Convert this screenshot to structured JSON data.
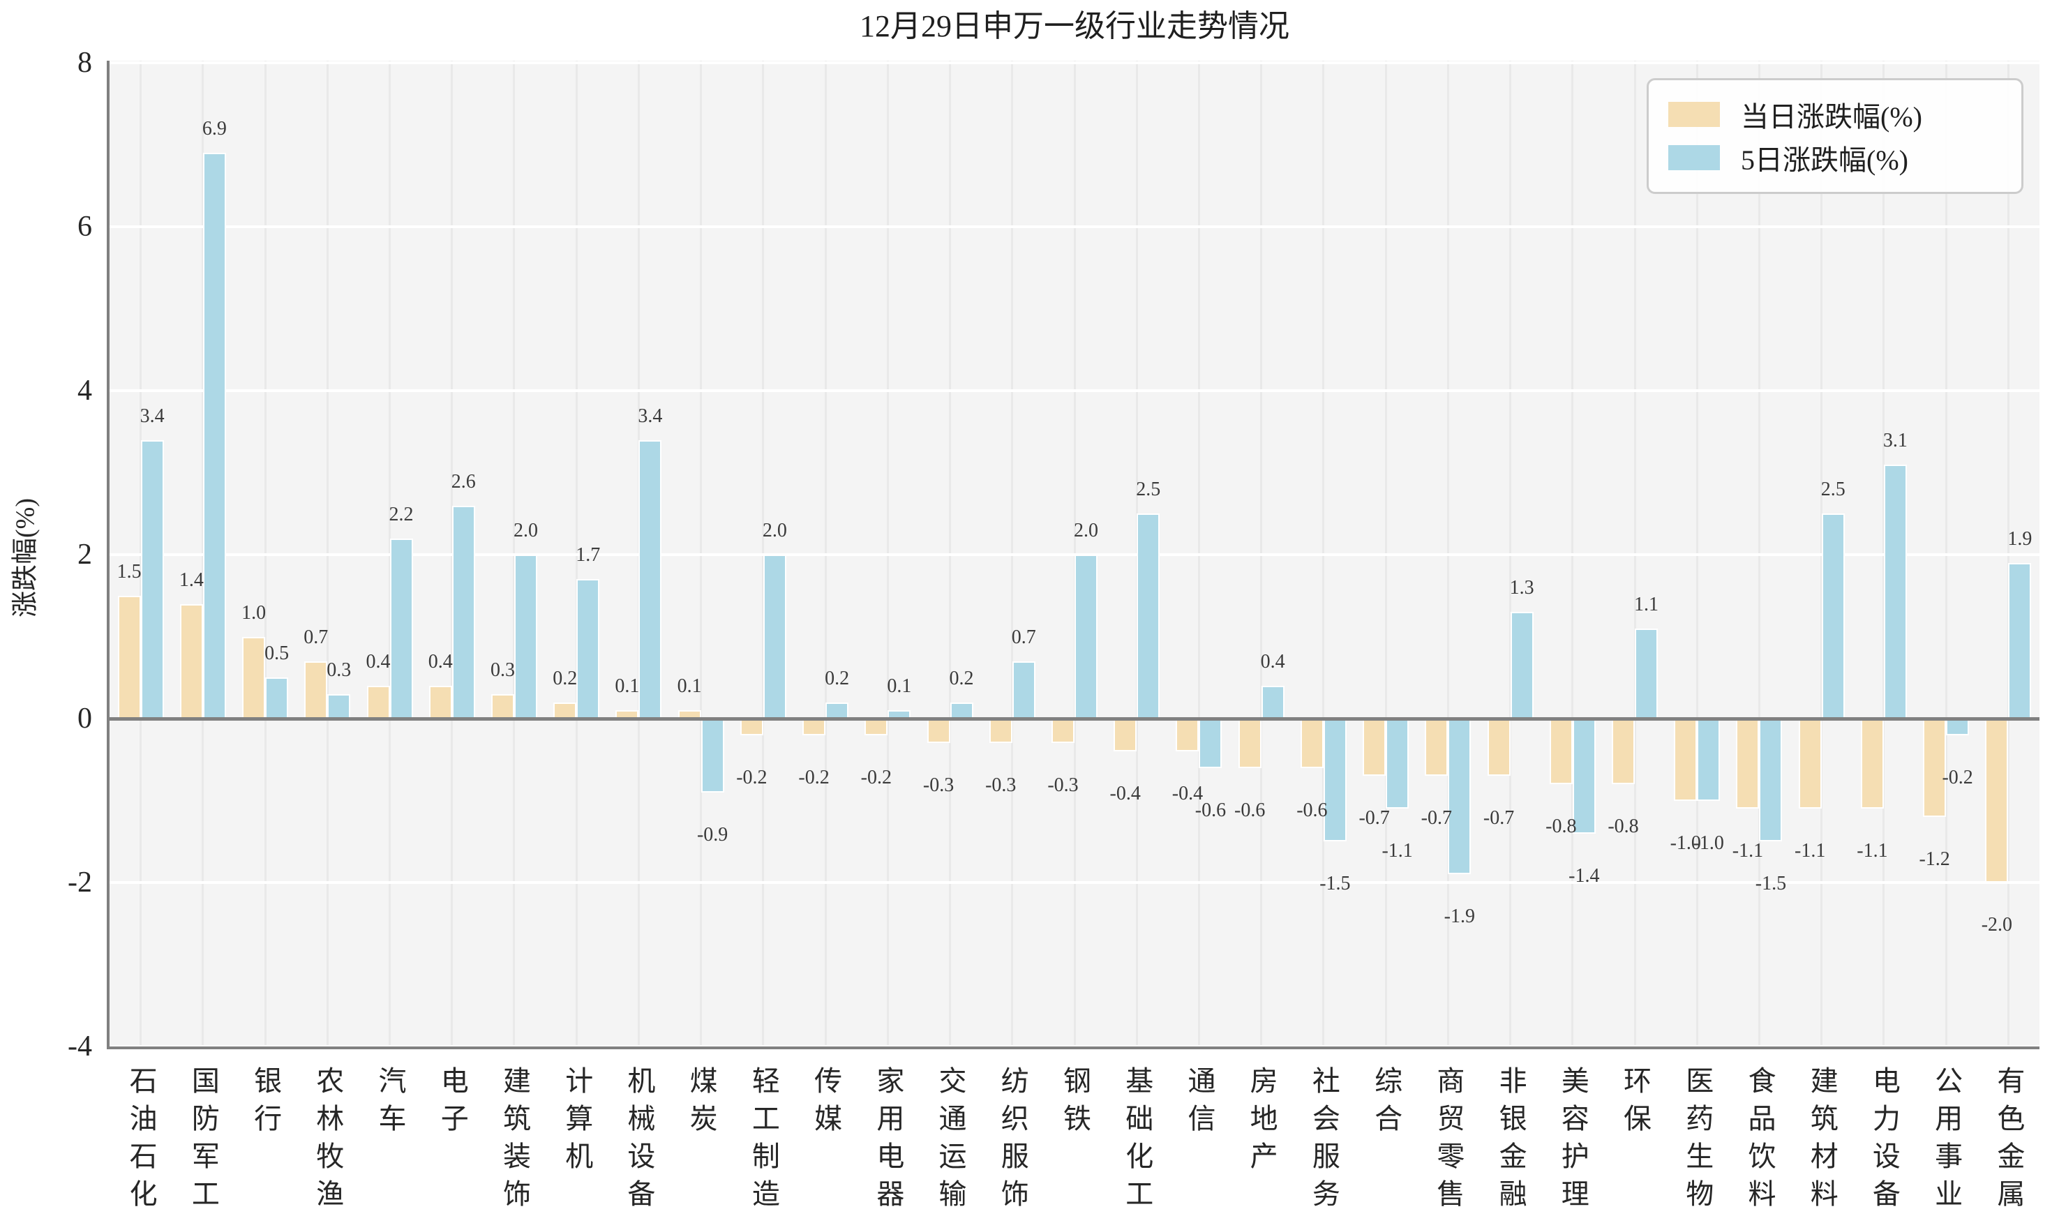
{
  "chart_data": {
    "type": "bar",
    "title": "12月29日申万一级行业走势情况",
    "ylabel": "涨跌幅(%)",
    "xlabel": "",
    "ylim": [
      -4,
      8
    ],
    "yticks": [
      8,
      6,
      4,
      2,
      0,
      -2,
      -4
    ],
    "grid": true,
    "legend_position": "upper right",
    "value_labels": true,
    "categories": [
      "石油石化",
      "国防军工",
      "银行",
      "农林牧渔",
      "汽车",
      "电子",
      "建筑装饰",
      "计算机",
      "机械设备",
      "煤炭",
      "轻工制造",
      "传媒",
      "家用电器",
      "交通运输",
      "纺织服饰",
      "钢铁",
      "基础化工",
      "通信",
      "房地产",
      "社会服务",
      "综合",
      "商贸零售",
      "非银金融",
      "美容护理",
      "环保",
      "医药生物",
      "食品饮料",
      "建筑材料",
      "电力设备",
      "公用事业",
      "有色金属"
    ],
    "series": [
      {
        "name": "当日涨跌幅(%)",
        "color": "#f5deb3",
        "values": [
          1.5,
          1.4,
          1.0,
          0.7,
          0.4,
          0.4,
          0.3,
          0.2,
          0.1,
          0.1,
          -0.2,
          -0.2,
          -0.2,
          -0.3,
          -0.3,
          -0.3,
          -0.4,
          -0.4,
          -0.6,
          -0.6,
          -0.7,
          -0.7,
          -0.7,
          -0.8,
          -0.8,
          -1.0,
          -1.1,
          -1.1,
          -1.1,
          -1.2,
          -2.0
        ]
      },
      {
        "name": "5日涨跌幅(%)",
        "color": "#add8e6",
        "values": [
          3.4,
          6.9,
          0.5,
          0.3,
          2.2,
          2.6,
          2.0,
          1.7,
          3.4,
          -0.9,
          2.0,
          0.2,
          0.1,
          0.2,
          0.7,
          2.0,
          2.5,
          -0.6,
          0.4,
          -1.5,
          -1.1,
          -1.9,
          1.3,
          -1.4,
          1.1,
          -1.0,
          -1.5,
          2.5,
          3.1,
          -0.2,
          1.9
        ]
      }
    ]
  },
  "colors": {
    "plot_background": "#f4f4f4",
    "horizontal_grid": "#ffffff",
    "vertical_grid": "#e9e9e9",
    "axis_spine": "#808080",
    "zero_line": "#808080",
    "bar_edge": "#ffffff",
    "legend_border": "#cccccc",
    "text": "#262626"
  }
}
